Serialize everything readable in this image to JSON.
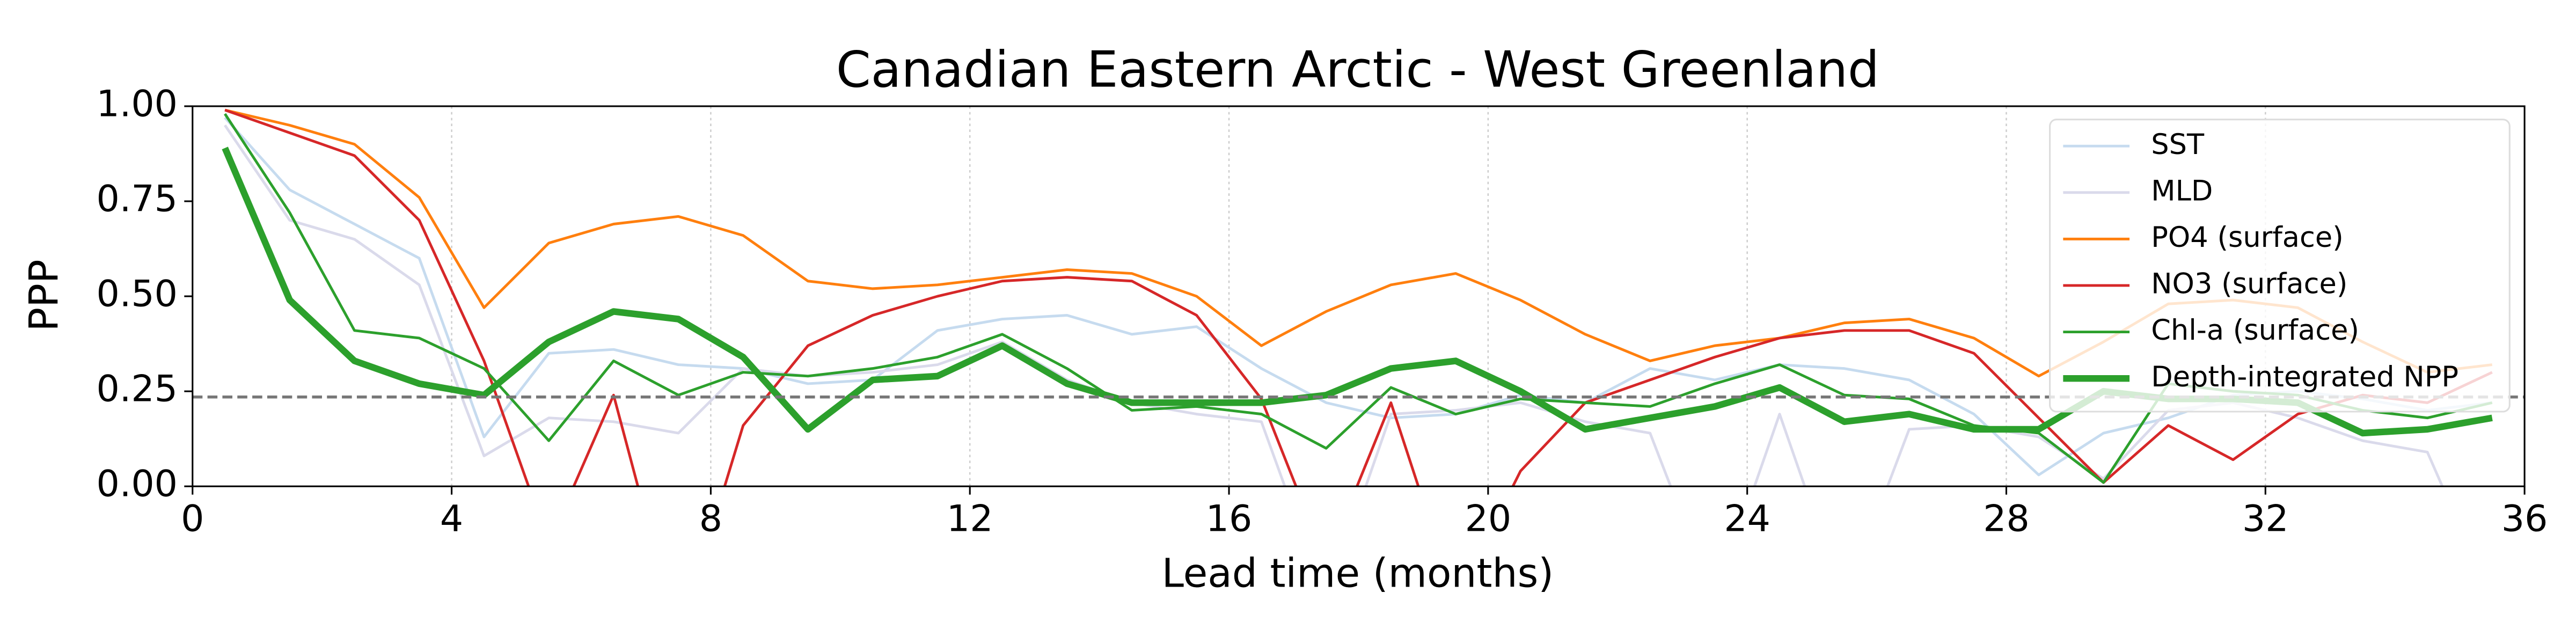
{
  "chart_data": {
    "type": "line",
    "title": "Canadian Eastern Arctic - West Greenland",
    "xlabel": "Lead time (months)",
    "ylabel": "PPP",
    "x": [
      0.5,
      1.5,
      2.5,
      3.5,
      4.5,
      5.5,
      6.5,
      7.5,
      8.5,
      9.5,
      10.5,
      11.5,
      12.5,
      13.5,
      14.5,
      15.5,
      16.5,
      17.5,
      18.5,
      19.5,
      20.5,
      21.5,
      22.5,
      23.5,
      24.5,
      25.5,
      26.5,
      27.5,
      28.5,
      29.5,
      30.5,
      31.5,
      32.5,
      33.5,
      34.5,
      35.5
    ],
    "series": [
      {
        "name": "SST",
        "color": "#c6dbef",
        "values": [
          0.97,
          0.78,
          0.69,
          0.6,
          0.13,
          0.35,
          0.36,
          0.32,
          0.31,
          0.27,
          0.28,
          0.41,
          0.44,
          0.45,
          0.4,
          0.42,
          0.31,
          0.22,
          0.18,
          0.19,
          0.24,
          0.22,
          0.31,
          0.28,
          0.32,
          0.31,
          0.28,
          0.19,
          0.03,
          0.14,
          0.18,
          0.24,
          0.25,
          0.23,
          0.2,
          0.22
        ]
      },
      {
        "name": "MLD",
        "color": "#dadaeb",
        "values": [
          0.95,
          0.7,
          0.65,
          0.53,
          0.08,
          0.18,
          0.17,
          0.14,
          0.31,
          0.29,
          0.3,
          0.32,
          0.38,
          0.28,
          0.22,
          0.19,
          0.17,
          -0.3,
          0.19,
          0.2,
          0.22,
          0.17,
          0.14,
          -0.3,
          0.19,
          -0.3,
          0.15,
          0.16,
          0.13,
          0.02,
          0.2,
          0.22,
          0.18,
          0.12,
          0.09,
          -0.3
        ]
      },
      {
        "name": "PO4 (surface)",
        "color": "#ff7f0e",
        "values": [
          0.99,
          0.95,
          0.9,
          0.76,
          0.47,
          0.64,
          0.69,
          0.71,
          0.66,
          0.54,
          0.52,
          0.53,
          0.55,
          0.57,
          0.56,
          0.5,
          0.37,
          0.46,
          0.53,
          0.56,
          0.49,
          0.4,
          0.33,
          0.37,
          0.39,
          0.43,
          0.44,
          0.39,
          0.29,
          0.38,
          0.48,
          0.49,
          0.47,
          0.38,
          0.3,
          0.32
        ]
      },
      {
        "name": "NO3 (surface)",
        "color": "#d62728",
        "values": [
          0.99,
          0.93,
          0.87,
          0.7,
          0.33,
          -0.15,
          0.24,
          -0.4,
          0.16,
          0.37,
          0.45,
          0.5,
          0.54,
          0.55,
          0.54,
          0.45,
          0.23,
          -0.2,
          0.22,
          -0.3,
          0.04,
          0.22,
          0.28,
          0.34,
          0.39,
          0.41,
          0.41,
          0.35,
          0.18,
          0.01,
          0.16,
          0.07,
          0.19,
          0.24,
          0.22,
          0.3
        ]
      },
      {
        "name": "Chl-a (surface)",
        "color": "#2ca02c",
        "values": [
          0.98,
          0.72,
          0.41,
          0.39,
          0.31,
          0.12,
          0.33,
          0.24,
          0.3,
          0.29,
          0.31,
          0.34,
          0.4,
          0.31,
          0.2,
          0.21,
          0.19,
          0.1,
          0.26,
          0.19,
          0.23,
          0.22,
          0.21,
          0.27,
          0.32,
          0.24,
          0.23,
          0.16,
          0.14,
          0.01,
          0.27,
          0.25,
          0.24,
          0.2,
          0.18,
          0.22
        ]
      },
      {
        "name": "Depth-integrated NPP",
        "color": "#2ca02c",
        "emphasis": true,
        "values": [
          0.89,
          0.49,
          0.33,
          0.27,
          0.24,
          0.38,
          0.46,
          0.44,
          0.34,
          0.15,
          0.28,
          0.29,
          0.37,
          0.27,
          0.22,
          0.22,
          0.22,
          0.24,
          0.31,
          0.33,
          0.25,
          0.15,
          0.18,
          0.21,
          0.26,
          0.17,
          0.19,
          0.15,
          0.15,
          0.25,
          0.23,
          0.23,
          0.22,
          0.14,
          0.15,
          0.18
        ]
      }
    ],
    "hline": 0.235,
    "xlim": [
      0,
      36
    ],
    "xticks": [
      0,
      4,
      8,
      12,
      16,
      20,
      24,
      28,
      32,
      36
    ],
    "ylim": [
      0,
      1
    ],
    "yticks": [
      {
        "value": 0,
        "label": "0.00"
      },
      {
        "value": 0.25,
        "label": "0.25"
      },
      {
        "value": 0.5,
        "label": "0.50"
      },
      {
        "value": 0.75,
        "label": "0.75"
      },
      {
        "value": 1,
        "label": "1.00"
      }
    ],
    "grid": "x",
    "legend": "upper right"
  }
}
